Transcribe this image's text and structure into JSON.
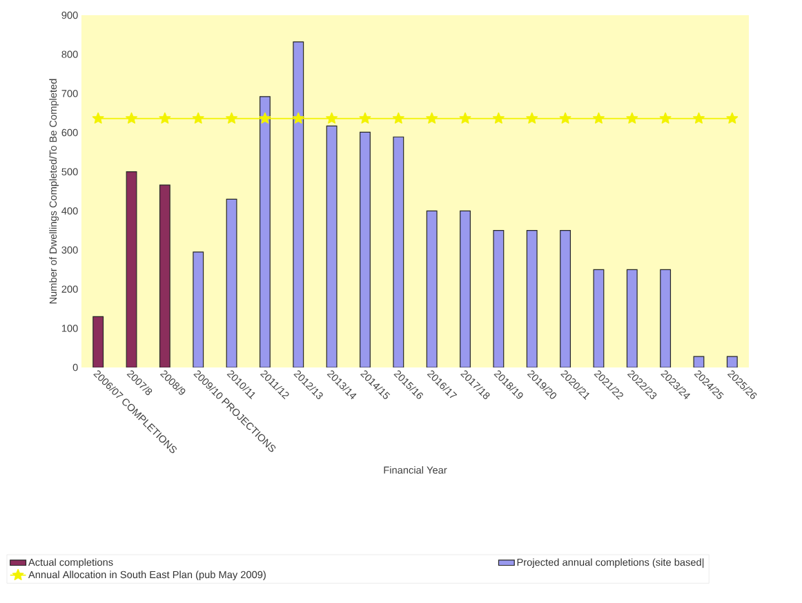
{
  "chart_data": {
    "type": "bar",
    "xlabel": "Financial Year",
    "ylabel": "Number of Dwellings Completed/To Be Completed",
    "categories": [
      "2006/07 COMPLETIONS",
      "2007/8",
      "2008/9",
      "2009/10 PROJECTIONS",
      "2010/11",
      "2011/12",
      "2012/13",
      "2013/14",
      "2014/15",
      "2015/16",
      "2016/17",
      "2017/18",
      "2018/19",
      "2019/20",
      "2020/21",
      "2021/22",
      "2022/23",
      "2023/24",
      "2024/25",
      "2025/26"
    ],
    "series": [
      {
        "name": "Actual completions",
        "color": "#8b2e5c",
        "values": [
          130,
          500,
          466,
          null,
          null,
          null,
          null,
          null,
          null,
          null,
          null,
          null,
          null,
          null,
          null,
          null,
          null,
          null,
          null,
          null
        ]
      },
      {
        "name": "Projected annual completions (site based|",
        "color": "#9999ee",
        "values": [
          null,
          null,
          null,
          295,
          430,
          692,
          832,
          617,
          601,
          589,
          400,
          400,
          350,
          350,
          350,
          250,
          250,
          250,
          28,
          28
        ]
      },
      {
        "name": "Annual Allocation in South East Plan (pub May 2009)",
        "type": "line",
        "color": "#f2f200",
        "marker": "star",
        "values": [
          636,
          636,
          636,
          636,
          636,
          636,
          636,
          636,
          636,
          636,
          636,
          636,
          636,
          636,
          636,
          636,
          636,
          636,
          636,
          636
        ]
      }
    ],
    "ylim": [
      0,
      900
    ],
    "yticks": [
      0,
      100,
      200,
      300,
      400,
      500,
      600,
      700,
      800,
      900
    ],
    "legend": "bottom"
  }
}
